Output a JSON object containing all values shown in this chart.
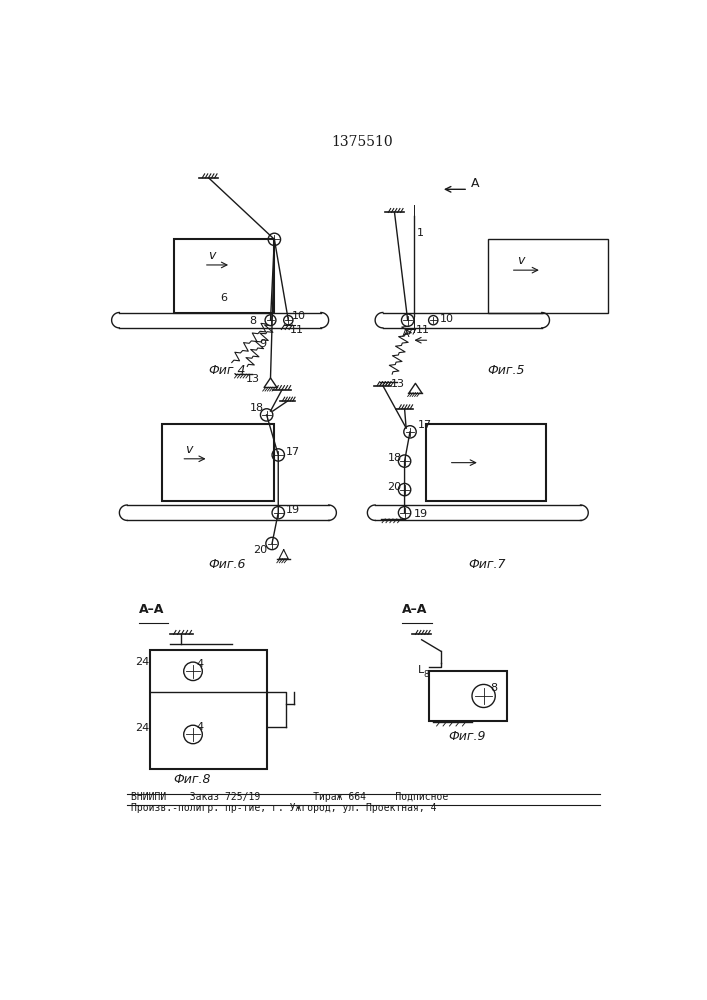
{
  "title": "1375510",
  "footer_line1": "ВНИИПИ    Заказ 725/19         Тираж 664     Подписное",
  "footer_line2": "Произв.-полигр. пр-тие, г. Ужгород, ул. Проектная, 4",
  "fig4_label": "Фиг.4",
  "fig5_label": "Фиг.5",
  "fig6_label": "Фиг.6",
  "fig7_label": "Фиг.7",
  "fig8_label": "Фиг.8",
  "fig9_label": "Фиг.9",
  "bg_color": "#ffffff",
  "line_color": "#1a1a1a"
}
